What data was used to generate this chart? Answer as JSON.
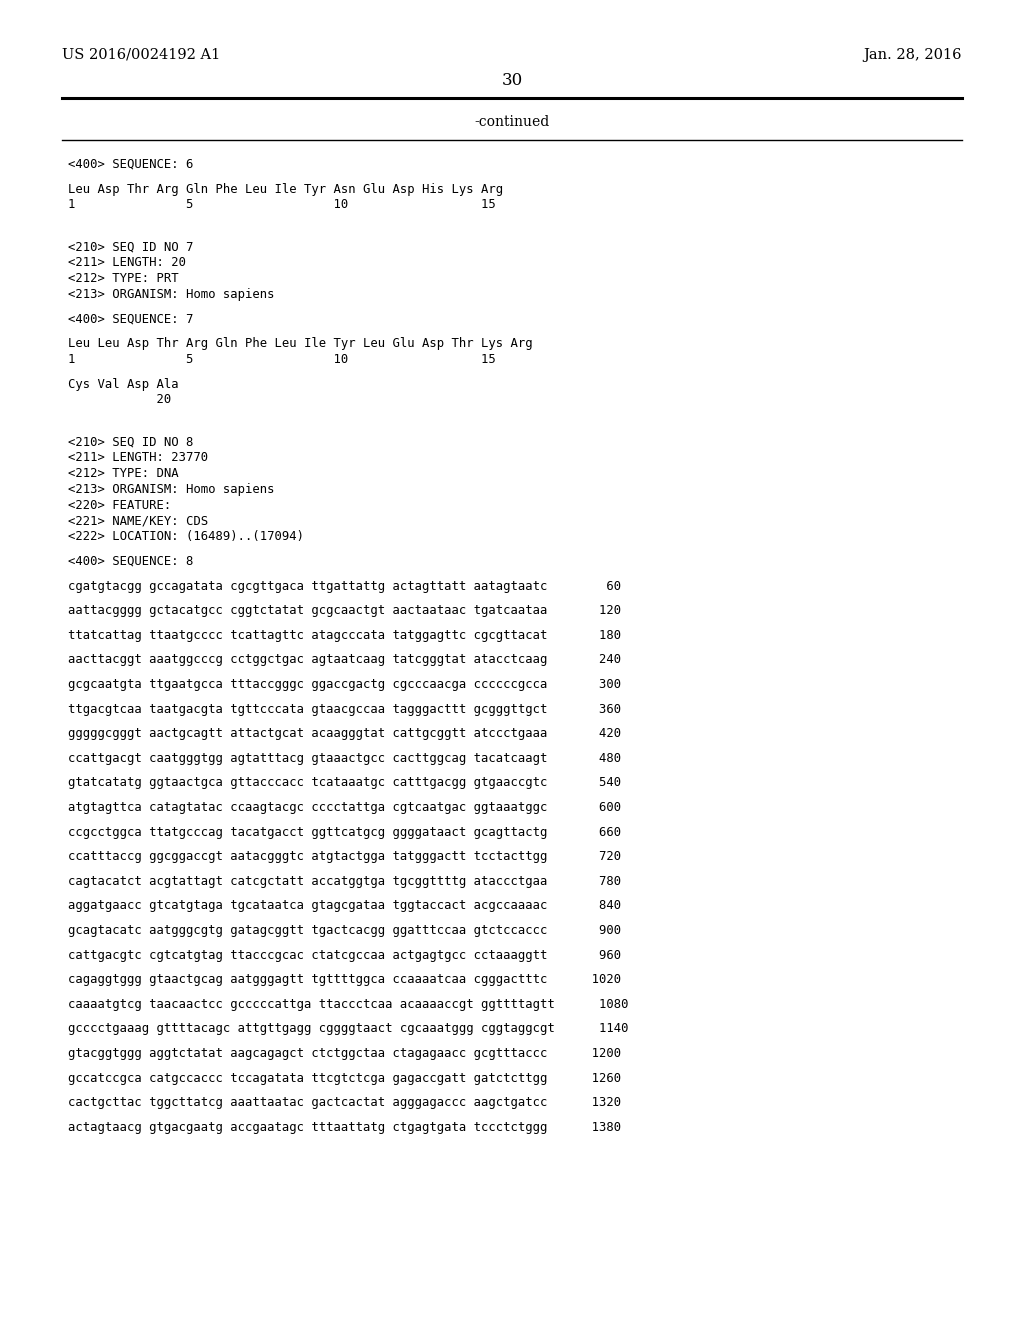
{
  "header_left": "US 2016/0024192 A1",
  "header_right": "Jan. 28, 2016",
  "page_number": "30",
  "continued_text": "-continued",
  "background_color": "#ffffff",
  "text_color": "#000000",
  "content": [
    [
      "<400> SEQUENCE: 6",
      false
    ],
    [
      "",
      false
    ],
    [
      "Leu Asp Thr Arg Gln Phe Leu Ile Tyr Asn Glu Asp His Lys Arg",
      false
    ],
    [
      "1               5                   10                  15",
      false
    ],
    [
      "",
      false
    ],
    [
      "",
      false
    ],
    [
      "",
      false
    ],
    [
      "<210> SEQ ID NO 7",
      false
    ],
    [
      "<211> LENGTH: 20",
      false
    ],
    [
      "<212> TYPE: PRT",
      false
    ],
    [
      "<213> ORGANISM: Homo sapiens",
      false
    ],
    [
      "",
      false
    ],
    [
      "<400> SEQUENCE: 7",
      false
    ],
    [
      "",
      false
    ],
    [
      "Leu Leu Asp Thr Arg Gln Phe Leu Ile Tyr Leu Glu Asp Thr Lys Arg",
      false
    ],
    [
      "1               5                   10                  15",
      false
    ],
    [
      "",
      false
    ],
    [
      "Cys Val Asp Ala",
      false
    ],
    [
      "            20",
      false
    ],
    [
      "",
      false
    ],
    [
      "",
      false
    ],
    [
      "",
      false
    ],
    [
      "<210> SEQ ID NO 8",
      false
    ],
    [
      "<211> LENGTH: 23770",
      false
    ],
    [
      "<212> TYPE: DNA",
      false
    ],
    [
      "<213> ORGANISM: Homo sapiens",
      false
    ],
    [
      "<220> FEATURE:",
      false
    ],
    [
      "<221> NAME/KEY: CDS",
      false
    ],
    [
      "<222> LOCATION: (16489)..(17094)",
      false
    ],
    [
      "",
      false
    ],
    [
      "<400> SEQUENCE: 8",
      false
    ],
    [
      "",
      false
    ],
    [
      "cgatgtacgg gccagatata cgcgttgaca ttgattattg actagttatt aatagtaatc        60",
      false
    ],
    [
      "",
      false
    ],
    [
      "aattacgggg gctacatgcc cggtctatat gcgcaactgt aactaataac tgatcaataa       120",
      false
    ],
    [
      "",
      false
    ],
    [
      "ttatcattag ttaatgcccc tcattagttc atagcccata tatggagttc cgcgttacat       180",
      false
    ],
    [
      "",
      false
    ],
    [
      "aacttacggt aaatggcccg cctggctgac agtaatcaag tatcgggtat atacctcaag       240",
      false
    ],
    [
      "",
      false
    ],
    [
      "gcgcaatgta ttgaatgcca tttaccgggc ggaccgactg cgcccaacga ccccccgcca       300",
      false
    ],
    [
      "",
      false
    ],
    [
      "ttgacgtcaa taatgacgta tgttcccata gtaacgccaa tagggacttt gcgggttgct       360",
      false
    ],
    [
      "",
      false
    ],
    [
      "gggggcgggt aactgcagtt attactgcat acaagggtat cattgcggtt atccctgaaa       420",
      false
    ],
    [
      "",
      false
    ],
    [
      "ccattgacgt caatgggtgg agtatttacg gtaaactgcc cacttggcag tacatcaagt       480",
      false
    ],
    [
      "",
      false
    ],
    [
      "gtatcatatg ggtaactgca gttacccacc tcataaatgc catttgacgg gtgaaccgtc       540",
      false
    ],
    [
      "",
      false
    ],
    [
      "atgtagttca catagtatac ccaagtacgc cccctattga cgtcaatgac ggtaaatggc       600",
      false
    ],
    [
      "",
      false
    ],
    [
      "ccgcctggca ttatgcccag tacatgacct ggttcatgcg ggggataact gcagttactg       660",
      false
    ],
    [
      "",
      false
    ],
    [
      "ccatttaccg ggcggaccgt aatacgggtc atgtactgga tatgggactt tcctacttgg       720",
      false
    ],
    [
      "",
      false
    ],
    [
      "cagtacatct acgtattagt catcgctatt accatggtga tgcggttttg ataccctgaa       780",
      false
    ],
    [
      "",
      false
    ],
    [
      "aggatgaacc gtcatgtaga tgcataatca gtagcgataa tggtaccact acgccaaaac       840",
      false
    ],
    [
      "",
      false
    ],
    [
      "gcagtacatc aatgggcgtg gatagcggtt tgactcacgg ggatttccaa gtctccaccc       900",
      false
    ],
    [
      "",
      false
    ],
    [
      "cattgacgtc cgtcatgtag ttacccgcac ctatcgccaa actgagtgcc cctaaaggtt       960",
      false
    ],
    [
      "",
      false
    ],
    [
      "cagaggtggg gtaactgcag aatgggagtt tgttttggca ccaaaatcaa cgggactttc      1020",
      false
    ],
    [
      "",
      false
    ],
    [
      "caaaatgtcg taacaactcc gcccccattga ttaccctcaa acaaaaccgt ggttttagtt      1080",
      false
    ],
    [
      "",
      false
    ],
    [
      "gcccctgaaag gttttacagc attgttgagg cggggtaact cgcaaatggg cggtaggcgt      1140",
      false
    ],
    [
      "",
      false
    ],
    [
      "gtacggtggg aggtctatat aagcagagct ctctggctaa ctagagaacc gcgtttaccc      1200",
      false
    ],
    [
      "",
      false
    ],
    [
      "gccatccgca catgccaccc tccagatata ttcgtctcga gagaccgatt gatctcttgg      1260",
      false
    ],
    [
      "",
      false
    ],
    [
      "cactgcttac tggcttatcg aaattaatac gactcactat agggagaccc aagctgatcc      1320",
      false
    ],
    [
      "",
      false
    ],
    [
      "actagtaacg gtgacgaatg accgaatagc tttaattatg ctgagtgata tccctctggg      1380",
      false
    ]
  ]
}
